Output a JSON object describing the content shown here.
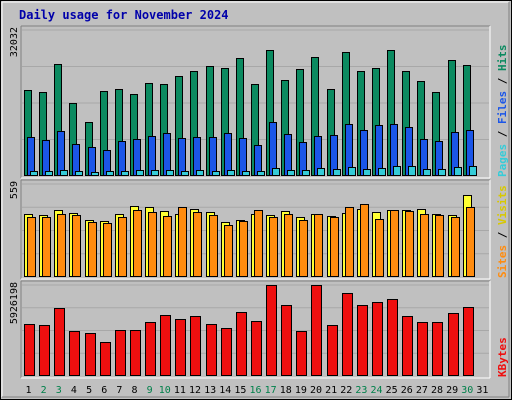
{
  "chart_data": {
    "type": "bar",
    "title": "Daily usage for November 2024",
    "categories": [
      "1",
      "2",
      "3",
      "4",
      "5",
      "6",
      "7",
      "8",
      "9",
      "10",
      "11",
      "12",
      "13",
      "14",
      "15",
      "16",
      "17",
      "18",
      "19",
      "20",
      "21",
      "22",
      "23",
      "24",
      "25",
      "26",
      "27",
      "28",
      "29",
      "30",
      "31"
    ],
    "weekend_days": [
      "2",
      "3",
      "9",
      "10",
      "16",
      "17",
      "23",
      "24",
      "30"
    ],
    "panels": [
      {
        "id": "hits",
        "max_label": "32032",
        "ylim": [
          0,
          32032
        ],
        "right_labels": [
          "Hits",
          "Files",
          "Pages"
        ],
        "series": [
          {
            "name": "Hits",
            "color": "#0b8a60",
            "values": [
              18900,
              18500,
              24600,
              16100,
              11800,
              18700,
              19100,
              18100,
              20500,
              20200,
              22000,
              23100,
              24200,
              23600,
              25800,
              20200,
              27700,
              21000,
              23400,
              26100,
              19100,
              27100,
              23100,
              23700,
              27700,
              23100,
              20900,
              18500,
              25500,
              24300,
              null
            ]
          },
          {
            "name": "Pages",
            "color": "#1b56e8",
            "values": [
              8500,
              7800,
              9800,
              7000,
              6400,
              5800,
              7700,
              8100,
              8700,
              9500,
              8400,
              8600,
              8600,
              9400,
              8400,
              6900,
              11900,
              9300,
              7500,
              8700,
              9000,
              11300,
              10200,
              11100,
              11500,
              10800,
              8100,
              7600,
              9600,
              10100,
              null
            ]
          },
          {
            "name": "Files",
            "color": "#35ccd8",
            "values": [
              1000,
              1100,
              1300,
              1000,
              900,
              1000,
              1100,
              1300,
              1300,
              1400,
              1200,
              1300,
              1200,
              1300,
              1200,
              1100,
              1700,
              1300,
              1400,
              1800,
              1500,
              1900,
              1600,
              1800,
              2300,
              2200,
              1600,
              1600,
              1900,
              2200,
              null
            ]
          }
        ]
      },
      {
        "id": "visits",
        "max_label": "559",
        "ylim": [
          0,
          559
        ],
        "right_labels": [
          "Visits",
          "Sites"
        ],
        "series": [
          {
            "name": "Visits",
            "color": "#ffff33",
            "values": [
              380,
              370,
              400,
              385,
              345,
              335,
              380,
              425,
              420,
              395,
              380,
              408,
              390,
              328,
              345,
              380,
              375,
              395,
              358,
              380,
              365,
              385,
              410,
              390,
              405,
              405,
              410,
              380,
              375,
              495,
              null
            ]
          },
          {
            "name": "Sites",
            "color": "#ff8c0f",
            "values": [
              362,
              360,
              380,
              372,
              330,
              325,
              360,
              405,
              390,
              365,
              420,
              390,
              375,
              315,
              335,
              400,
              360,
              380,
              345,
              378,
              360,
              420,
              440,
              350,
              400,
              398,
              380,
              370,
              360,
              420,
              null
            ]
          }
        ]
      },
      {
        "id": "kbytes",
        "max_label": "5926198",
        "ylim": [
          0,
          5926198
        ],
        "right_labels": [
          "KBytes"
        ],
        "series": [
          {
            "name": "KBytes",
            "color": "#ee0f0f",
            "values": [
              3400000,
              3300000,
              4400000,
              2900000,
              2800000,
              2200000,
              3000000,
              3000000,
              3500000,
              4000000,
              3700000,
              3900000,
              3400000,
              3100000,
              4200000,
              3600000,
              5900000,
              4600000,
              2900000,
              5900000,
              3300000,
              5400000,
              4600000,
              4800000,
              5000000,
              3900000,
              3500000,
              3500000,
              4100000,
              4500000,
              null
            ]
          }
        ]
      }
    ],
    "colors": {
      "plot_bg": "#c0c0c0",
      "frame_bg": "#ffffff",
      "title": "#0000aa",
      "weekday_label": "#000000",
      "weekend_label": "#00804a"
    }
  }
}
